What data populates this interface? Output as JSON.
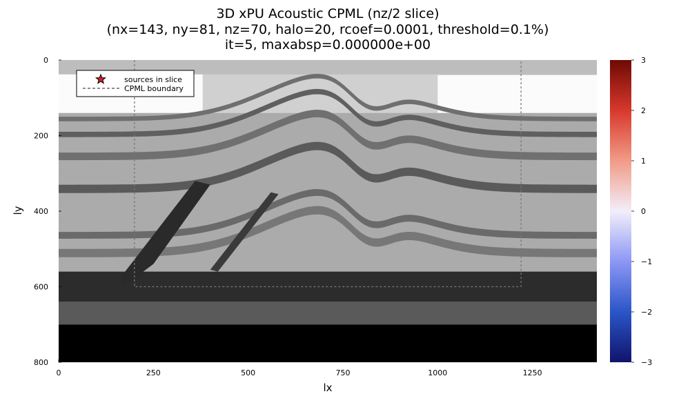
{
  "chart_data": {
    "type": "heatmap",
    "title_lines": [
      "3D xPU Acoustic CPML (nz/2 slice)",
      "(nx=143, ny=81, nz=70, halo=20, rcoef=0.0001, threshold=0.1%)",
      "it=5, maxabsp=0.000000e+00"
    ],
    "xlabel": "lx",
    "ylabel": "ly",
    "xlim": [
      0,
      1420
    ],
    "ylim": [
      800,
      0
    ],
    "xticks": [
      0,
      250,
      500,
      750,
      1000,
      1250
    ],
    "xtick_labels": [
      "0",
      "250",
      "500",
      "750",
      "1000",
      "1250"
    ],
    "yticks": [
      0,
      200,
      400,
      600,
      800
    ],
    "ytick_labels": [
      "0",
      "200",
      "400",
      "600",
      "800"
    ],
    "colorbar": {
      "limits": [
        -3,
        3
      ],
      "ticks": [
        -3,
        -2,
        -1,
        0,
        1,
        2,
        3
      ],
      "tick_labels": [
        "−3",
        "−2",
        "−1",
        "0",
        "1",
        "2",
        "3"
      ],
      "colormap": [
        "#10146b",
        "#2b55c8",
        "#8c97f5",
        "#f2eefa",
        "#f19b87",
        "#d8382c",
        "#6e0a05"
      ]
    },
    "legend": {
      "position": "top-left",
      "entries": [
        {
          "label": "sources in slice",
          "marker": "star",
          "color": "#d42028"
        },
        {
          "label": "CPML boundary",
          "style": "dashed",
          "color": "#666666"
        }
      ]
    },
    "cpml_boundary": {
      "x": [
        200,
        1220
      ],
      "y_top": 0,
      "y_bottom": 600
    },
    "background_layers": [
      {
        "name": "top-light",
        "gray": "#d0d0d0",
        "y_from": 0,
        "y_to": 140
      },
      {
        "name": "mid-gray",
        "gray": "#ababab",
        "y_from": 140,
        "y_to": 560
      },
      {
        "name": "dark-band",
        "gray": "#2c2c2c",
        "y_from": 560,
        "y_to": 640
      },
      {
        "name": "lower-gray",
        "gray": "#5a5a5a",
        "y_from": 640,
        "y_to": 700
      },
      {
        "name": "bottom-black",
        "gray": "#000000",
        "y_from": 700,
        "y_to": 800
      }
    ]
  }
}
